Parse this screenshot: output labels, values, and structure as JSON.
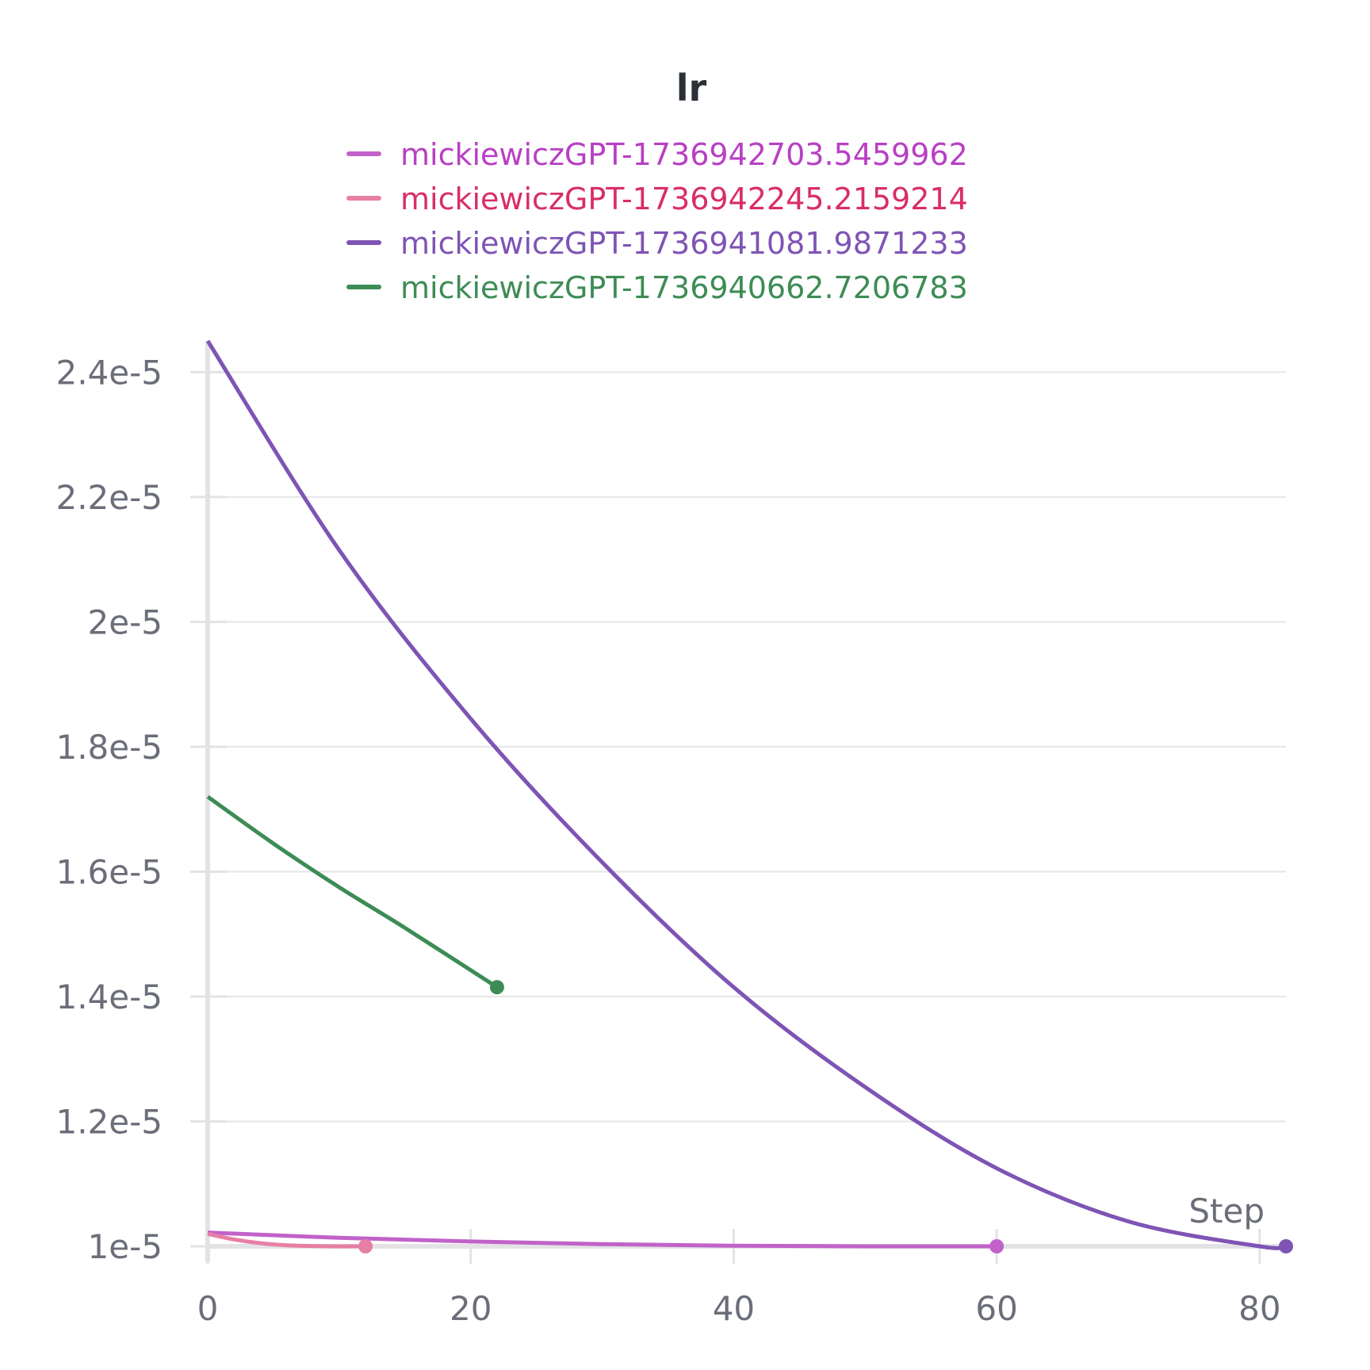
{
  "chart_data": {
    "type": "line",
    "title": "lr",
    "xlabel": "Step",
    "ylabel": "",
    "xlim": [
      0,
      82
    ],
    "ylim": [
      1e-05,
      2.45e-05
    ],
    "x_ticks": [
      0,
      20,
      40,
      60,
      80
    ],
    "x_tick_labels": [
      "0",
      "20",
      "40",
      "60",
      "80"
    ],
    "y_ticks": [
      1e-05,
      1.2e-05,
      1.4e-05,
      1.6e-05,
      1.8e-05,
      2e-05,
      2.2e-05,
      2.4e-05
    ],
    "y_tick_labels": [
      "1e-5",
      "1.2e-5",
      "1.4e-5",
      "1.6e-5",
      "1.8e-5",
      "2e-5",
      "2.2e-5",
      "2.4e-5"
    ],
    "grid": true,
    "legend_position": "top-center",
    "series": [
      {
        "name": "mickiewiczGPT-1736942703.5459962",
        "color": "#c162c9",
        "label_color": "#b83fc4",
        "x": [
          0,
          10,
          20,
          30,
          40,
          50,
          60
        ],
        "y": [
          1.022e-05,
          1.0137e-05,
          1.0077e-05,
          1.0035e-05,
          1.0009e-05,
          1e-05,
          1e-05
        ]
      },
      {
        "name": "mickiewiczGPT-1736942245.2159214",
        "color": "#e67fa4",
        "label_color": "#d92d68",
        "x": [
          0,
          2,
          4,
          6,
          8,
          10,
          12
        ],
        "y": [
          1.02e-05,
          1.011e-05,
          1.005e-05,
          1.0018e-05,
          1.0004e-05,
          1e-05,
          1e-05
        ]
      },
      {
        "name": "mickiewiczGPT-1736941081.9871233",
        "color": "#7e54b5",
        "label_color": "#7e54b5",
        "x": [
          0,
          10,
          20,
          30,
          40,
          50,
          60,
          70,
          80,
          82
        ],
        "y": [
          2.45e-05,
          2.115e-05,
          1.845e-05,
          1.615e-05,
          1.415e-05,
          1.255e-05,
          1.125e-05,
          1.04e-05,
          1e-05,
          1e-05
        ]
      },
      {
        "name": "mickiewiczGPT-1736940662.7206783",
        "color": "#3d8c55",
        "label_color": "#3d8c55",
        "x": [
          0,
          5,
          10,
          15,
          22
        ],
        "y": [
          1.72e-05,
          1.645e-05,
          1.575e-05,
          1.51e-05,
          1.415e-05
        ]
      }
    ]
  }
}
